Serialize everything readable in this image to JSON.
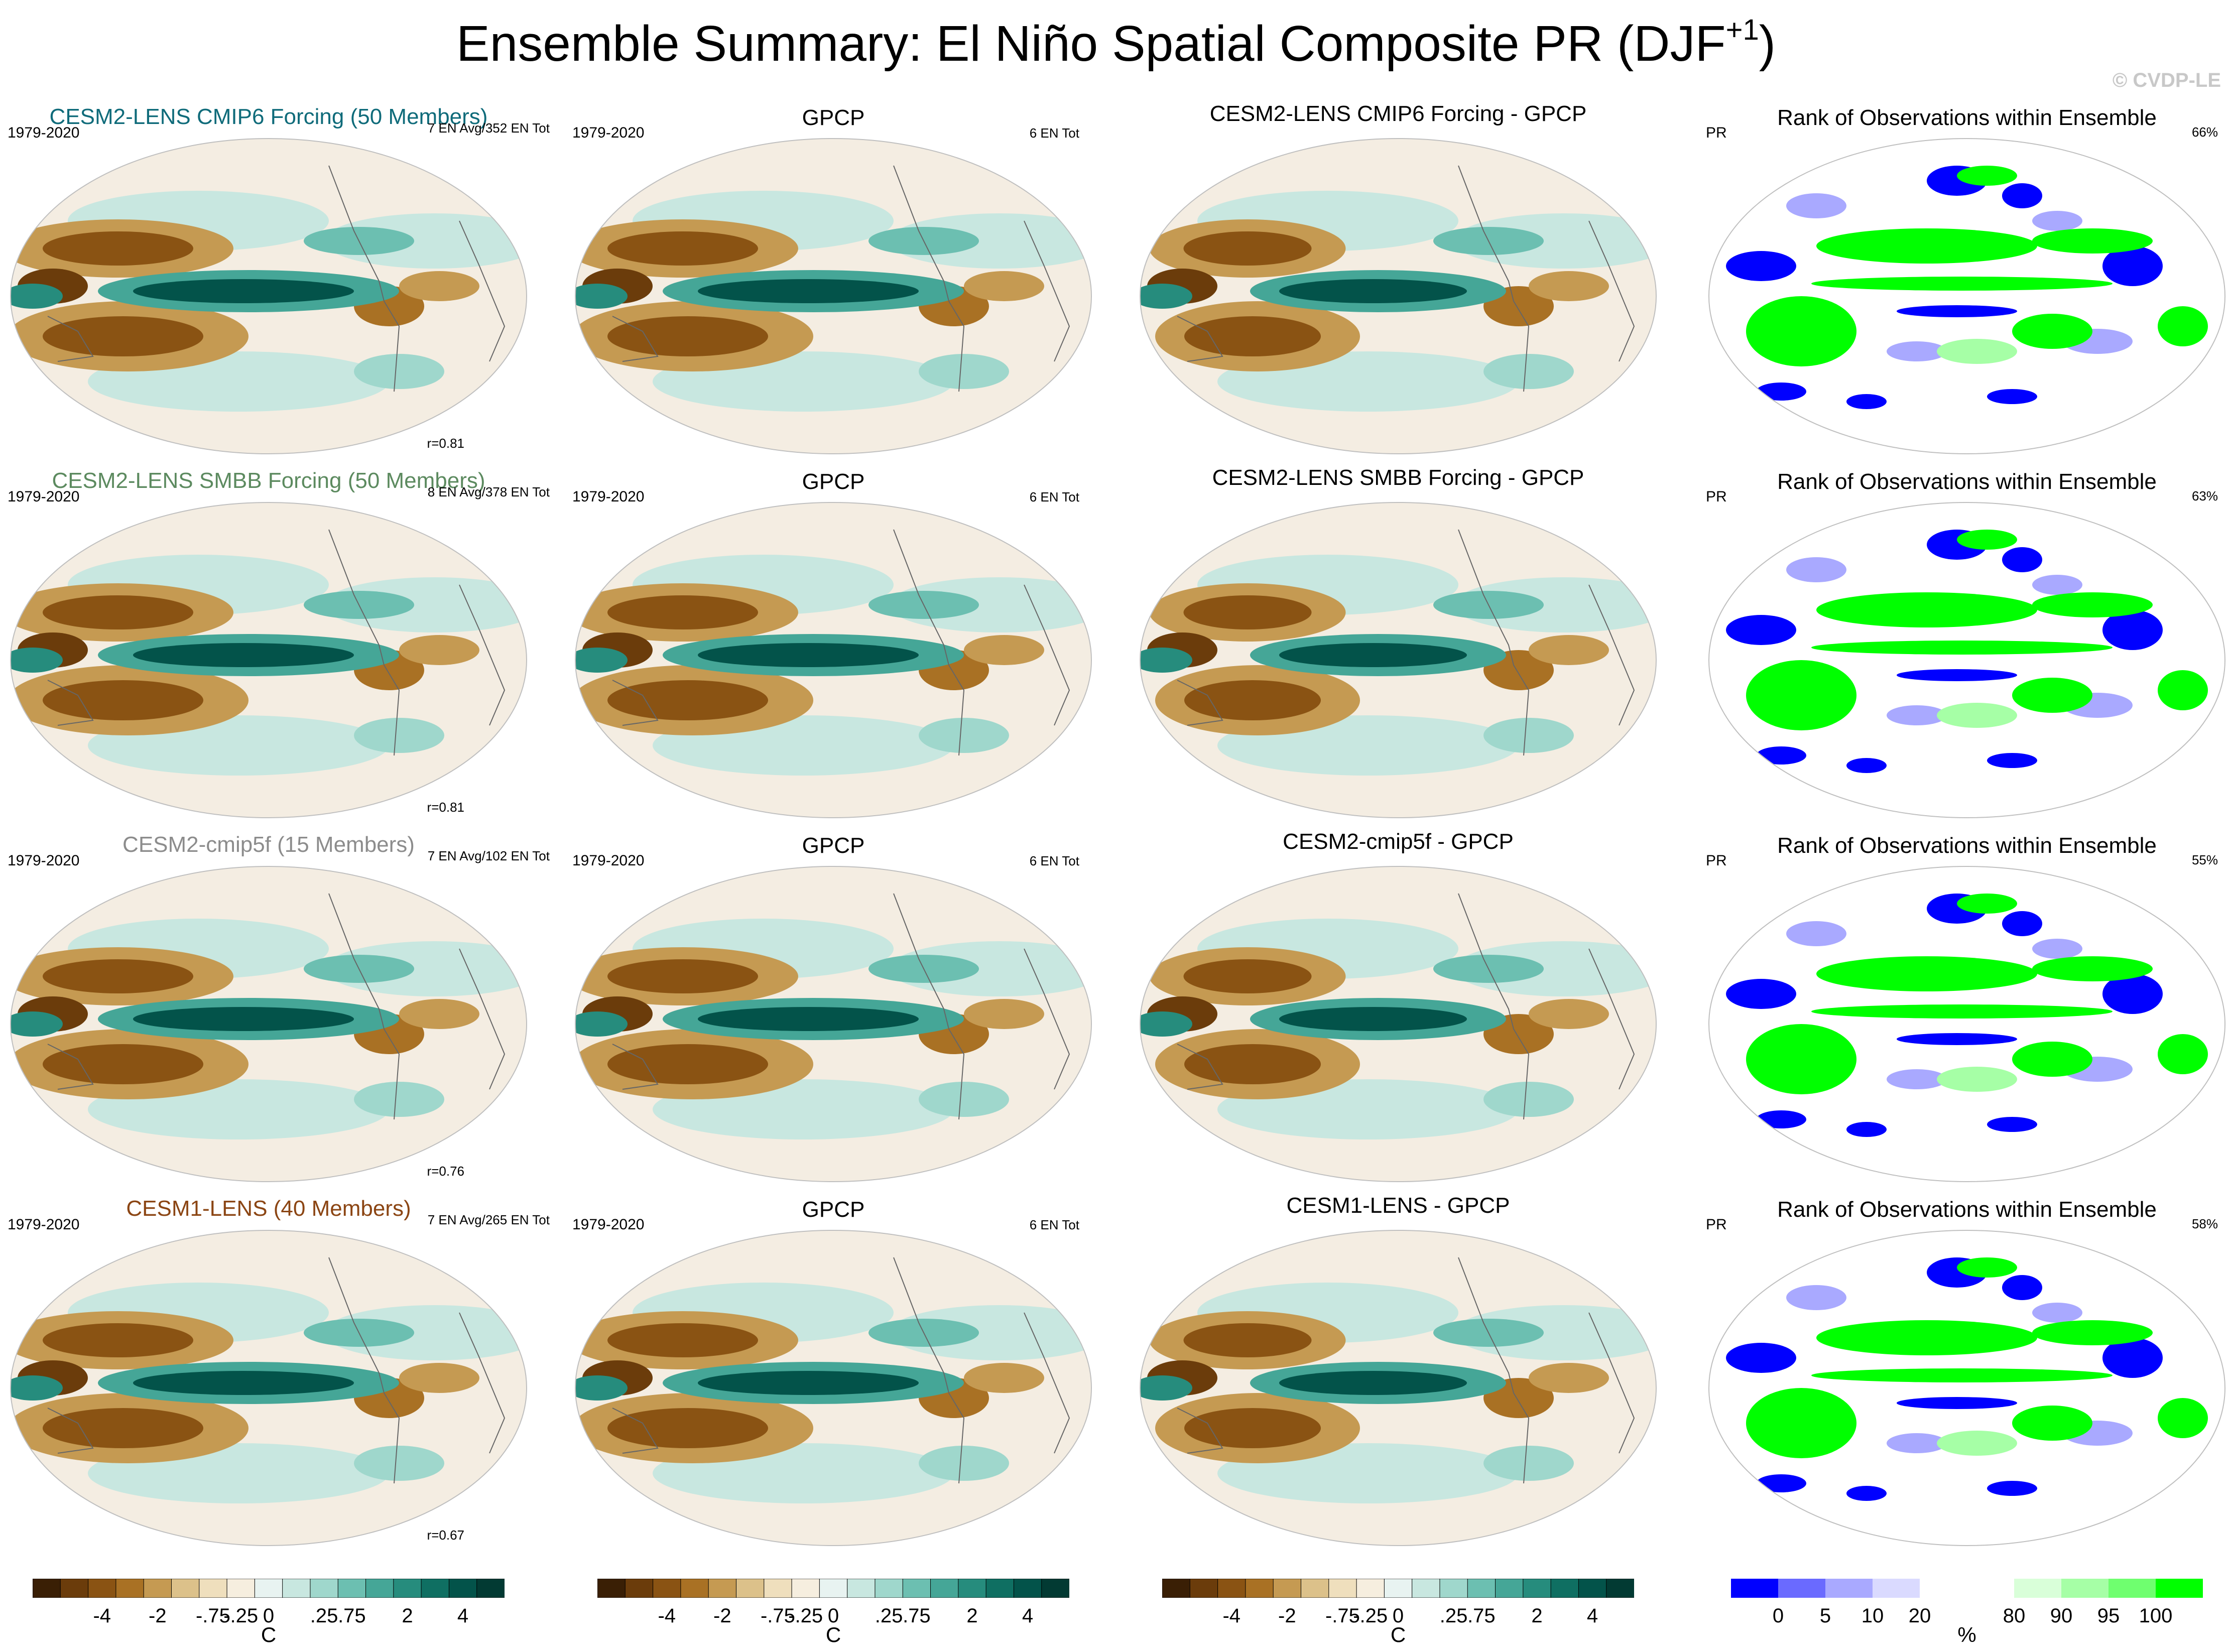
{
  "figure": {
    "title": "Ensemble Summary: El Niño Spatial Composite PR (DJF",
    "title_sup": "+1",
    "title_close": ")",
    "copyright": "© CVDP-LE"
  },
  "chart_data": {
    "type": "heatmap",
    "description_fields": "4x4 grid of global map panels",
    "colors": {
      "diverging": [
        "#3a1f05",
        "#6b3c0b",
        "#8a5313",
        "#a97124",
        "#c59a52",
        "#dcc18a",
        "#efdfbd",
        "#f6eedf",
        "#e8f3f1",
        "#c8e7e0",
        "#9fd7cc",
        "#6cbfb1",
        "#45a697",
        "#268c7d",
        "#0f6f62",
        "#03534a",
        "#023a33"
      ],
      "rank": [
        "#0000ff",
        "#6a6aff",
        "#a9a9ff",
        "#dadaff",
        "#ffffff",
        "#ffffff",
        "#d9ffd9",
        "#a6ffa6",
        "#6fff6f",
        "#00ff00"
      ]
    },
    "rows": [
      {
        "model_title": "CESM2-LENS CMIP6 Forcing (50 Members)",
        "model_color": "#0f6b7a",
        "model_period": "1979-2020",
        "model_info": "7 EN Avg/352 EN Tot",
        "pattern_r": "r=0.81",
        "obs_title": "GPCP",
        "obs_period": "1979-2020",
        "obs_info": "6 EN Tot",
        "diff_title": "CESM2-LENS CMIP6 Forcing - GPCP",
        "rank_title": "Rank of Observations within Ensemble",
        "rank_var": "PR",
        "rank_pct": "66%"
      },
      {
        "model_title": "CESM2-LENS SMBB Forcing (50 Members)",
        "model_color": "#5c8a5f",
        "model_period": "1979-2020",
        "model_info": "8 EN Avg/378 EN Tot",
        "pattern_r": "r=0.81",
        "obs_title": "GPCP",
        "obs_period": "1979-2020",
        "obs_info": "6 EN Tot",
        "diff_title": "CESM2-LENS SMBB Forcing - GPCP",
        "rank_title": "Rank of Observations within Ensemble",
        "rank_var": "PR",
        "rank_pct": "63%"
      },
      {
        "model_title": "CESM2-cmip5f (15 Members)",
        "model_color": "#8c8c8c",
        "model_period": "1979-2020",
        "model_info": "7 EN Avg/102 EN Tot",
        "pattern_r": "r=0.76",
        "obs_title": "GPCP",
        "obs_period": "1979-2020",
        "obs_info": "6 EN Tot",
        "diff_title": "CESM2-cmip5f - GPCP",
        "rank_title": "Rank of Observations within Ensemble",
        "rank_var": "PR",
        "rank_pct": "55%"
      },
      {
        "model_title": "CESM1-LENS (40 Members)",
        "model_color": "#8b4513",
        "model_period": "1979-2020",
        "model_info": "7 EN Avg/265 EN Tot",
        "pattern_r": "r=0.67",
        "obs_title": "GPCP",
        "obs_period": "1979-2020",
        "obs_info": "6 EN Tot",
        "diff_title": "CESM1-LENS - GPCP",
        "rank_title": "Rank of Observations within Ensemble",
        "rank_var": "PR",
        "rank_pct": "58%"
      }
    ],
    "colorbars": {
      "diverging_ticks": [
        "-4",
        "-2",
        "-.75",
        "-.25",
        "0",
        ".25",
        ".75",
        "2",
        "4"
      ],
      "diverging_unit": "C",
      "rank_ticks": [
        "0",
        "5",
        "10",
        "20",
        "80",
        "90",
        "95",
        "100"
      ],
      "rank_unit": "%"
    }
  }
}
